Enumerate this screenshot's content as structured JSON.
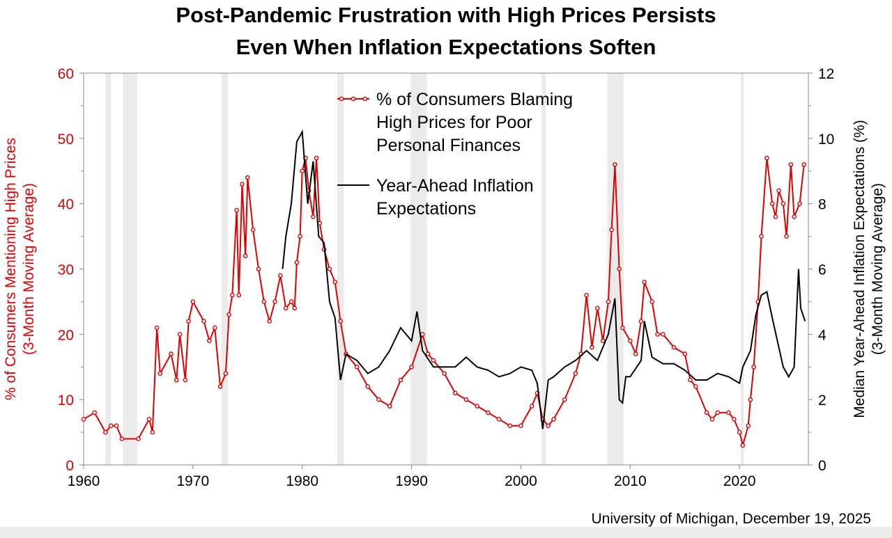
{
  "title_line1": "Post-Pandemic Frustration with High Prices Persists",
  "title_line2": "Even When Inflation Expectations Soften",
  "source": "University of Michigan, December 19, 2025",
  "chart_data": {
    "type": "line",
    "title": "Post-Pandemic Frustration with High Prices Persists Even When Inflation Expectations Soften",
    "xlim": [
      1960,
      2026.3
    ],
    "x_ticks": [
      "1960",
      "1970",
      "1980",
      "1990",
      "2000",
      "2010",
      "2020"
    ],
    "y_left": {
      "label_line1": "% of Consumers Mentioning High Prices",
      "label_line2": "(3-Month Moving Average)",
      "lim": [
        0,
        60
      ],
      "ticks": [
        "0",
        "10",
        "20",
        "30",
        "40",
        "50",
        "60"
      ],
      "color": "#e00000"
    },
    "y_right": {
      "label_line1": "Median Year-Ahead Inflation Expectations (%)",
      "label_line2": "(3-Month Moving Average)",
      "lim": [
        0,
        12
      ],
      "ticks": [
        "0",
        "2",
        "4",
        "6",
        "8",
        "10",
        "12"
      ],
      "color": "#000000"
    },
    "legend_placement": "top-center",
    "grid": false,
    "shaded_periods": [
      [
        1962.0,
        1962.5
      ],
      [
        1963.6,
        1964.9
      ],
      [
        1972.6,
        1973.2
      ],
      [
        1983.2,
        1983.8
      ],
      [
        1989.9,
        1991.4
      ],
      [
        2001.9,
        2002.3
      ],
      [
        2007.9,
        2009.4
      ],
      [
        2020.1,
        2020.4
      ]
    ],
    "series": [
      {
        "name": "% of Consumers Blaming High Prices for Poor Personal Finances",
        "legend_lines": [
          "% of Consumers Blaming",
          "High Prices for Poor",
          "Personal Finances"
        ],
        "axis": "left",
        "color": "#e00000",
        "marker": "circle",
        "x": [
          1960,
          1961,
          1962,
          1962.5,
          1963,
          1963.5,
          1965,
          1966,
          1966.3,
          1966.7,
          1967,
          1968,
          1968.5,
          1968.8,
          1969.3,
          1969.6,
          1970,
          1971,
          1971.5,
          1972,
          1972.5,
          1973,
          1973.3,
          1973.6,
          1974,
          1974.2,
          1974.5,
          1974.8,
          1975,
          1975.5,
          1976,
          1976.5,
          1977,
          1977.5,
          1978,
          1978.5,
          1979,
          1979.3,
          1979.5,
          1979.8,
          1980,
          1980.3,
          1980.6,
          1981,
          1981.3,
          1981.6,
          1982,
          1982.5,
          1983,
          1983.5,
          1984,
          1985,
          1986,
          1987,
          1988,
          1989,
          1990,
          1991,
          1991.5,
          1992,
          1993,
          1994,
          1995,
          1996,
          1997,
          1998,
          1999,
          2000,
          2001,
          2001.5,
          2002,
          2002.5,
          2003,
          2004,
          2005,
          2005.5,
          2006,
          2006.5,
          2007,
          2007.5,
          2008,
          2008.3,
          2008.6,
          2009,
          2009.3,
          2010,
          2010.5,
          2011,
          2011.3,
          2012,
          2012.5,
          2013,
          2014,
          2015,
          2015.5,
          2016,
          2017,
          2017.5,
          2018,
          2019,
          2019.5,
          2020,
          2020.3,
          2020.8,
          2021,
          2021.3,
          2021.7,
          2022,
          2022.5,
          2023,
          2023.3,
          2023.6,
          2024,
          2024.3,
          2024.7,
          2025,
          2025.5,
          2025.9
        ],
        "y": [
          7,
          8,
          5,
          6,
          6,
          4,
          4,
          7,
          5,
          21,
          14,
          17,
          13,
          20,
          13,
          22,
          25,
          22,
          19,
          21,
          12,
          14,
          23,
          26,
          39,
          26,
          43,
          32,
          44,
          36,
          30,
          25,
          22,
          25,
          29,
          24,
          25,
          24,
          31,
          35,
          45,
          47,
          42,
          38,
          47,
          37,
          33,
          30,
          28,
          22,
          17,
          15,
          12,
          10,
          9,
          13,
          15,
          20,
          17,
          16,
          14,
          11,
          10,
          9,
          8,
          7,
          6,
          6,
          9,
          11,
          7,
          6,
          7,
          10,
          14,
          17,
          26,
          18,
          24,
          19,
          25,
          36,
          46,
          30,
          21,
          19,
          17,
          22,
          28,
          25,
          20,
          20,
          18,
          17,
          13,
          12,
          8,
          7,
          8,
          8,
          7,
          5,
          3,
          6,
          10,
          15,
          25,
          35,
          47,
          40,
          38,
          42,
          40,
          35,
          46,
          38,
          40,
          46
        ]
      },
      {
        "name": "Year-Ahead Inflation Expectations",
        "legend_lines": [
          "Year-Ahead Inflation",
          "Expectations"
        ],
        "axis": "right",
        "color": "#000000",
        "x": [
          1978.2,
          1978.5,
          1979,
          1979.5,
          1980,
          1980.5,
          1981,
          1981.5,
          1982,
          1982.5,
          1983,
          1983.5,
          1984,
          1985,
          1986,
          1987,
          1988,
          1989,
          1990,
          1990.5,
          1991,
          1992,
          1993,
          1994,
          1995,
          1996,
          1997,
          1998,
          1999,
          2000,
          2001,
          2001.5,
          2002,
          2002.5,
          2003,
          2004,
          2005,
          2006,
          2007,
          2008,
          2008.6,
          2009,
          2009.3,
          2009.6,
          2010,
          2011,
          2011.3,
          2012,
          2013,
          2014,
          2015,
          2016,
          2017,
          2018,
          2019,
          2020,
          2020.3,
          2021,
          2021.5,
          2022,
          2022.5,
          2023,
          2024,
          2024.5,
          2025,
          2025.4,
          2025.6,
          2026
        ],
        "y": [
          6,
          7,
          8,
          9.9,
          10.2,
          8,
          9.3,
          7,
          6.8,
          5,
          4.5,
          2.6,
          3.4,
          3.2,
          2.8,
          3,
          3.5,
          4.2,
          3.8,
          4.7,
          3.5,
          3,
          3,
          3,
          3.3,
          3,
          2.9,
          2.7,
          2.8,
          3,
          2.9,
          2.5,
          1.1,
          2.6,
          2.7,
          3,
          3.2,
          3.5,
          3.2,
          4,
          5.1,
          2,
          1.9,
          2.7,
          2.7,
          3.2,
          4.4,
          3.3,
          3.1,
          3.1,
          2.9,
          2.6,
          2.6,
          2.8,
          2.7,
          2.5,
          3,
          3.5,
          4.6,
          5.2,
          5.3,
          4.5,
          3,
          2.7,
          3,
          6,
          4.8,
          4.4
        ]
      }
    ]
  }
}
